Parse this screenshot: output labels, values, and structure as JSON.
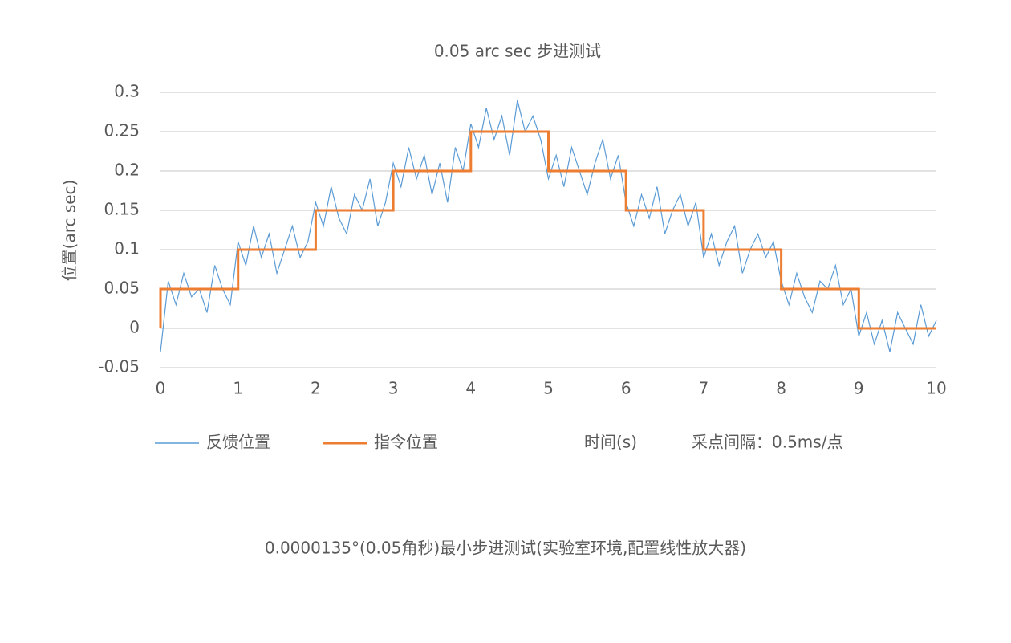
{
  "chart_data": {
    "type": "line",
    "title": "0.05 arc sec 步进测试",
    "y_label": "位置(arc sec)",
    "x_label": "时间(s)",
    "annotation": "采点间隔：0.5ms/点",
    "caption": "0.0000135°(0.05角秒)最小步进测试(实验室环境,配置线性放大器)",
    "xlim": [
      0,
      10
    ],
    "ylim": [
      -0.05,
      0.3
    ],
    "xticks": [
      0,
      1,
      2,
      3,
      4,
      5,
      6,
      7,
      8,
      9,
      10
    ],
    "yticks": [
      -0.05,
      0,
      0.05,
      0.1,
      0.15,
      0.2,
      0.25,
      0.3
    ],
    "grid": true,
    "legend": "bottom",
    "series": [
      {
        "name": "反馈位置",
        "color": "#5b9bd5",
        "x": [
          0,
          0.1,
          0.2,
          0.3,
          0.4,
          0.5,
          0.6,
          0.7,
          0.8,
          0.9,
          1,
          1.1,
          1.2,
          1.3,
          1.4,
          1.5,
          1.6,
          1.7,
          1.8,
          1.9,
          2,
          2.1,
          2.2,
          2.3,
          2.4,
          2.5,
          2.6,
          2.7,
          2.8,
          2.9,
          3,
          3.1,
          3.2,
          3.3,
          3.4,
          3.5,
          3.6,
          3.7,
          3.8,
          3.9,
          4,
          4.1,
          4.2,
          4.3,
          4.4,
          4.5,
          4.6,
          4.7,
          4.8,
          4.9,
          5,
          5.1,
          5.2,
          5.3,
          5.4,
          5.5,
          5.6,
          5.7,
          5.8,
          5.9,
          6,
          6.1,
          6.2,
          6.3,
          6.4,
          6.5,
          6.6,
          6.7,
          6.8,
          6.9,
          7,
          7.1,
          7.2,
          7.3,
          7.4,
          7.5,
          7.6,
          7.7,
          7.8,
          7.9,
          8,
          8.1,
          8.2,
          8.3,
          8.4,
          8.5,
          8.6,
          8.7,
          8.8,
          8.9,
          9,
          9.1,
          9.2,
          9.3,
          9.4,
          9.5,
          9.6,
          9.7,
          9.8,
          9.9,
          10
        ],
        "values": [
          -0.03,
          0.06,
          0.03,
          0.07,
          0.04,
          0.05,
          0.02,
          0.08,
          0.05,
          0.03,
          0.11,
          0.08,
          0.13,
          0.09,
          0.12,
          0.07,
          0.1,
          0.13,
          0.09,
          0.11,
          0.16,
          0.13,
          0.18,
          0.14,
          0.12,
          0.17,
          0.15,
          0.19,
          0.13,
          0.16,
          0.21,
          0.18,
          0.23,
          0.19,
          0.22,
          0.17,
          0.21,
          0.16,
          0.23,
          0.2,
          0.26,
          0.23,
          0.28,
          0.24,
          0.27,
          0.22,
          0.29,
          0.25,
          0.27,
          0.24,
          0.19,
          0.22,
          0.18,
          0.23,
          0.2,
          0.17,
          0.21,
          0.24,
          0.19,
          0.22,
          0.16,
          0.13,
          0.17,
          0.14,
          0.18,
          0.12,
          0.15,
          0.17,
          0.13,
          0.16,
          0.09,
          0.12,
          0.08,
          0.11,
          0.13,
          0.07,
          0.1,
          0.12,
          0.09,
          0.11,
          0.06,
          0.03,
          0.07,
          0.04,
          0.02,
          0.06,
          0.05,
          0.08,
          0.03,
          0.05,
          -0.01,
          0.02,
          -0.02,
          0.01,
          -0.03,
          0.02,
          0,
          -0.02,
          0.03,
          -0.01,
          0.01
        ]
      },
      {
        "name": "指令位置",
        "color": "#ed7d31",
        "x": [
          0,
          0,
          1,
          1,
          2,
          2,
          3,
          3,
          4,
          4,
          5,
          5,
          6,
          6,
          7,
          7,
          8,
          8,
          9,
          9,
          10
        ],
        "values": [
          0,
          0.05,
          0.05,
          0.1,
          0.1,
          0.15,
          0.15,
          0.2,
          0.2,
          0.25,
          0.25,
          0.2,
          0.2,
          0.15,
          0.15,
          0.1,
          0.1,
          0.05,
          0.05,
          0,
          0
        ]
      }
    ]
  }
}
